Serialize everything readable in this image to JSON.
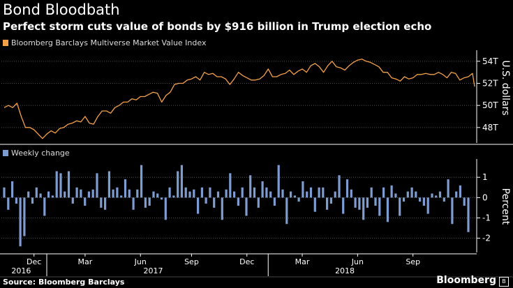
{
  "title": "Bond Bloodbath",
  "subtitle": "Perfect storm cuts value of bonds by $916 billion in Trump election echo",
  "source": "Source: Bloomberg Barclays",
  "brand": "Bloomberg",
  "brand_icon": "bloomberg-logo-icon",
  "colors": {
    "line": "#f5a14a",
    "bar": "#7e9ccf",
    "background": "#000000",
    "grid": "#555555"
  },
  "chart_data": [
    {
      "type": "line",
      "legend": "Bloomberg Barclays Multiverse Market Value Index",
      "ylabel": "U.S. dollars",
      "ylim": [
        46.6,
        55.0
      ],
      "yticks": [
        48,
        50,
        52,
        54
      ],
      "ytick_labels": [
        "48T",
        "50T",
        "52T",
        "54T"
      ],
      "x": [
        0,
        1,
        2,
        3,
        4,
        5,
        6,
        7,
        8,
        9,
        10,
        11,
        12,
        13,
        14,
        15,
        16,
        17,
        18,
        19,
        20,
        21,
        22,
        23,
        24,
        25,
        26,
        27,
        28,
        29,
        30,
        31,
        32,
        33,
        34,
        35,
        36,
        37,
        38,
        39,
        40,
        41,
        42,
        43,
        44,
        45,
        46,
        47,
        48,
        49,
        50,
        51,
        52,
        53,
        54,
        55,
        56,
        57,
        58,
        59,
        60,
        61,
        62,
        63,
        64,
        65,
        66,
        67,
        68,
        69,
        70,
        71,
        72,
        73,
        74,
        75,
        76,
        77,
        78,
        79,
        80,
        81,
        82,
        83,
        84,
        85,
        86,
        87,
        88,
        89,
        90,
        91,
        92,
        93,
        94,
        95,
        96,
        97,
        98,
        99,
        100,
        101,
        102,
        103,
        104,
        105,
        106,
        107,
        108,
        109
      ],
      "values": [
        49.8,
        50.0,
        49.8,
        50.2,
        49.0,
        48.0,
        48.0,
        47.8,
        47.4,
        47.0,
        47.4,
        47.7,
        47.5,
        47.9,
        48.0,
        48.3,
        48.4,
        48.6,
        48.5,
        49.0,
        48.4,
        48.3,
        49.0,
        49.5,
        49.5,
        49.3,
        49.8,
        50.0,
        50.3,
        50.3,
        50.6,
        50.5,
        50.8,
        50.8,
        51.0,
        51.2,
        51.1,
        50.3,
        50.9,
        51.2,
        51.9,
        52.0,
        52.0,
        52.3,
        52.4,
        52.6,
        52.3,
        53.0,
        52.8,
        52.9,
        52.6,
        52.6,
        52.4,
        51.9,
        52.4,
        53.0,
        52.7,
        52.5,
        52.3,
        52.3,
        52.4,
        52.7,
        53.3,
        52.6,
        52.6,
        52.8,
        52.9,
        53.2,
        52.8,
        53.1,
        53.3,
        53.0,
        53.6,
        53.8,
        53.5,
        53.0,
        53.6,
        54.0,
        53.5,
        53.4,
        53.2,
        53.6,
        53.9,
        54.1,
        54.2,
        54.0,
        53.9,
        53.7,
        53.5,
        53.0,
        53.0,
        52.5,
        52.4,
        52.2,
        52.6,
        52.4,
        52.5,
        52.8,
        52.8,
        52.9,
        52.8,
        52.8,
        53.0,
        52.8,
        52.5,
        53.0,
        52.9,
        52.3,
        52.5,
        52.6
      ],
      "line_end": [
        52.9,
        51.7
      ]
    },
    {
      "type": "bar",
      "legend": "Weekly change",
      "ylabel": "Percent",
      "ylim": [
        -2.7,
        1.9
      ],
      "yticks": [
        -2,
        -1,
        0,
        1
      ],
      "ytick_labels": [
        "-2",
        "-1",
        "0",
        "1"
      ],
      "values": [
        0.5,
        -0.6,
        0.8,
        -0.3,
        -2.4,
        -1.9,
        0.3,
        -0.3,
        0.5,
        0.2,
        -0.9,
        0.3,
        0.1,
        1.3,
        1.2,
        0.3,
        1.3,
        -0.3,
        0.5,
        0.4,
        -0.4,
        0.3,
        0.4,
        1.2,
        -0.5,
        -0.6,
        1.3,
        0.4,
        0.5,
        0.1,
        0.9,
        0.4,
        -0.6,
        0.4,
        1.6,
        -0.5,
        -0.4,
        0.3,
        0.2,
        -0.1,
        -1.1,
        0.5,
        0.1,
        1.3,
        1.6,
        0.5,
        0.3,
        0.4,
        -0.8,
        0.5,
        -0.3,
        0.5,
        -0.5,
        0.3,
        -1.1,
        0.4,
        1.2,
        0.3,
        -0.4,
        0.5,
        -0.9,
        1.1,
        0.5,
        -0.5,
        0.8,
        0.5,
        0.3,
        -0.4,
        1.6,
        0.4,
        -1.3,
        0.3,
        0.1,
        -0.2,
        0.8,
        0.3,
        0.5,
        -0.7,
        0.5,
        0.5,
        -0.6,
        -0.3,
        0.3,
        1.1,
        -0.8,
        0.9,
        0.4,
        -0.5,
        -0.6,
        -1.1,
        -0.5,
        0.5,
        -0.4,
        -0.9,
        0.5,
        -1.2,
        0.6,
        0.2,
        -0.9,
        -0.2,
        0.3,
        0.5,
        0.3,
        -0.2,
        -0.4,
        -0.8,
        0.2,
        0.1,
        0.3,
        -0.2,
        0.9,
        -1.3,
        0.3,
        0.6,
        -0.4,
        -1.7
      ]
    }
  ],
  "x_axis": {
    "month_labels": [
      {
        "label": "Dec",
        "index": 7
      },
      {
        "label": "Mar",
        "index": 19
      },
      {
        "label": "Jun",
        "index": 32
      },
      {
        "label": "Sep",
        "index": 44
      },
      {
        "label": "Dec",
        "index": 57
      },
      {
        "label": "Mar",
        "index": 70
      },
      {
        "label": "Jun",
        "index": 83
      },
      {
        "label": "Sep",
        "index": 96
      }
    ],
    "year_labels": [
      {
        "label": "2016",
        "index": 4
      },
      {
        "label": "2017",
        "index": 35
      },
      {
        "label": "2018",
        "index": 80
      }
    ],
    "year_dividers": [
      10,
      62
    ],
    "line_points": 110
  }
}
